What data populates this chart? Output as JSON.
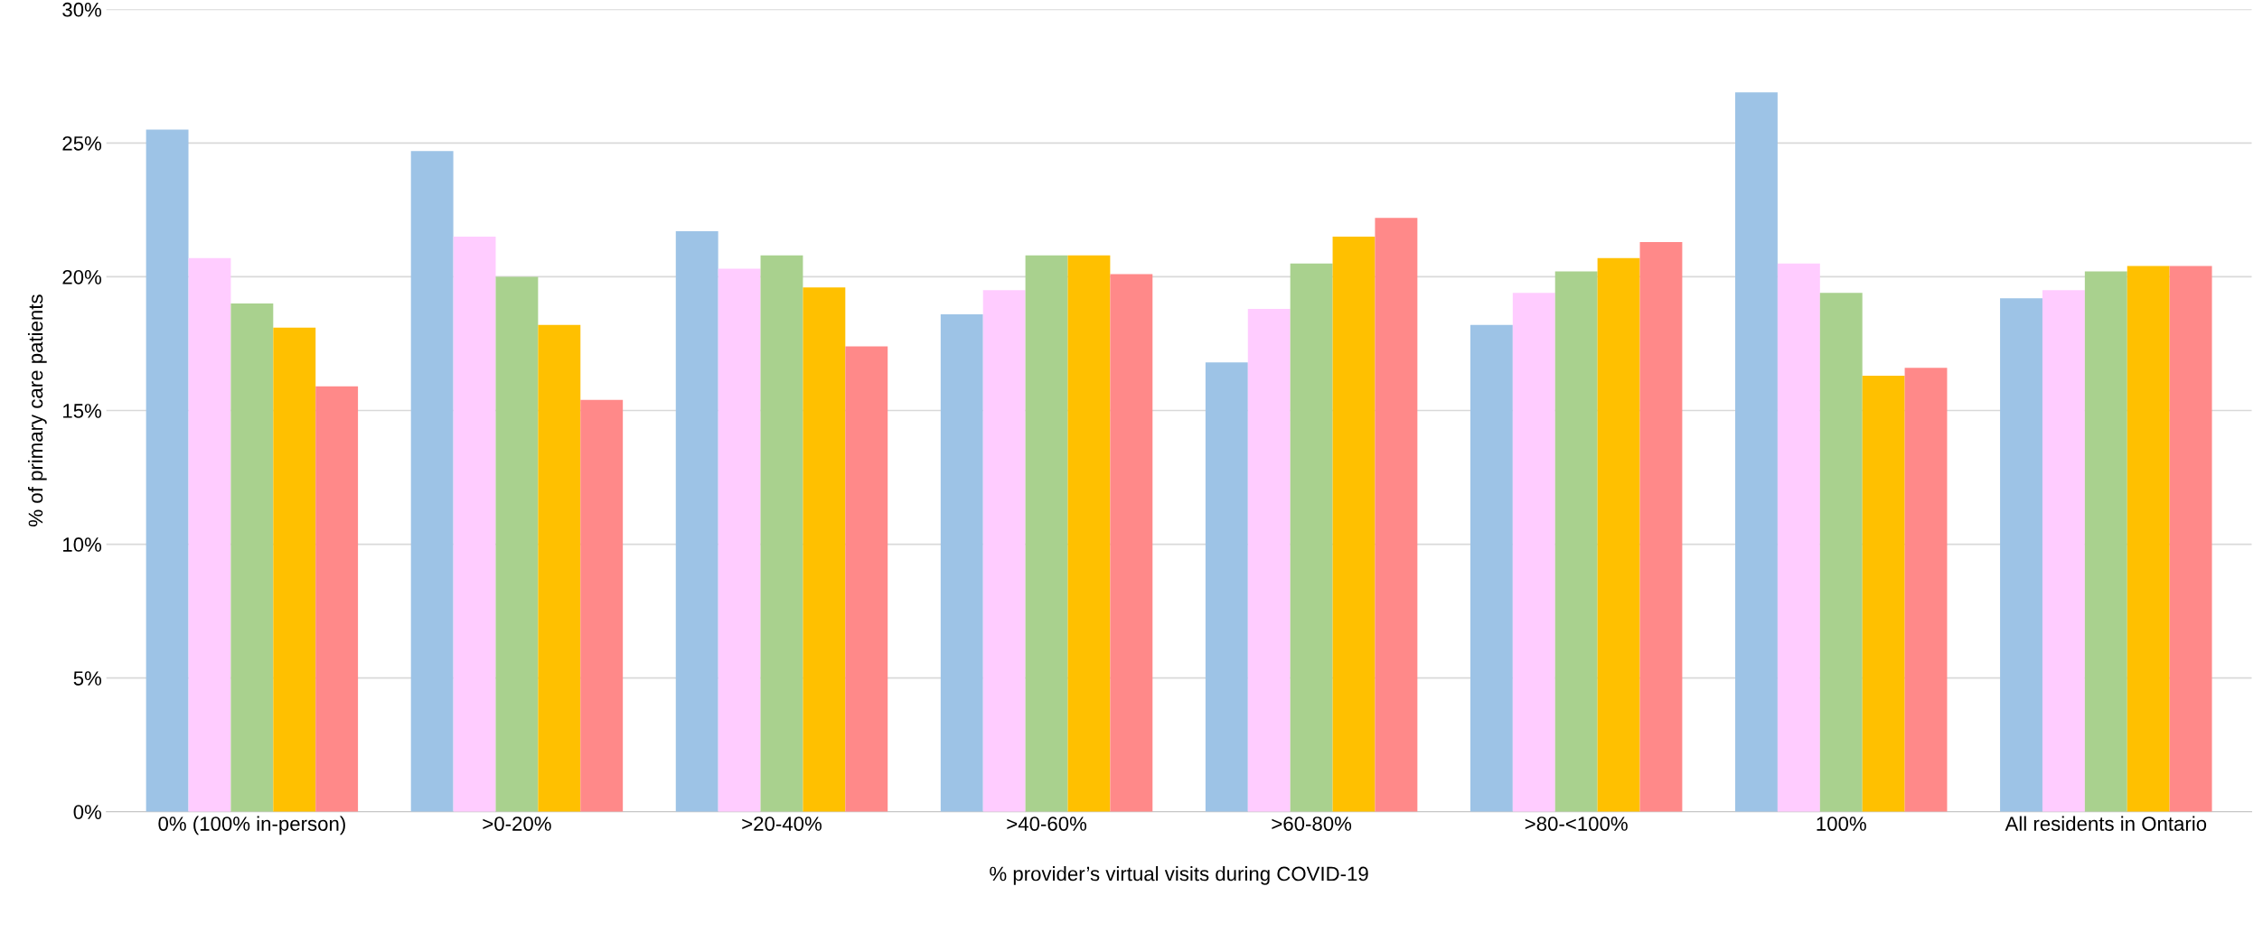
{
  "chart_data": {
    "type": "bar",
    "xlabel": "% provider’s virtual visits during COVID-19",
    "ylabel": "% of primary care patients",
    "categories": [
      "0% (100% in-person)",
      ">0-20%",
      ">20-40%",
      ">40-60%",
      ">60-80%",
      ">80-<100%",
      "100%",
      "All residents in Ontario"
    ],
    "series": [
      {
        "color": "#9dc3e6",
        "values": [
          25.5,
          24.7,
          21.7,
          18.6,
          16.8,
          18.2,
          26.9,
          19.2
        ]
      },
      {
        "color": "#ffccff",
        "values": [
          20.7,
          21.5,
          20.3,
          19.5,
          18.8,
          19.4,
          20.5,
          19.5
        ]
      },
      {
        "color": "#a9d18e",
        "values": [
          19.0,
          20.0,
          20.8,
          20.8,
          20.5,
          20.2,
          19.4,
          20.2
        ]
      },
      {
        "color": "#ffc000",
        "values": [
          18.1,
          18.2,
          19.6,
          20.8,
          21.5,
          20.7,
          16.3,
          20.4
        ]
      },
      {
        "color": "#ff8989",
        "values": [
          15.9,
          15.4,
          17.4,
          20.1,
          22.2,
          21.3,
          16.6,
          20.4
        ]
      }
    ],
    "ylim": [
      0,
      30
    ],
    "yticks": [
      {
        "value": 0,
        "label": "0%"
      },
      {
        "value": 5,
        "label": "5%"
      },
      {
        "value": 10,
        "label": "10%"
      },
      {
        "value": 15,
        "label": "15%"
      },
      {
        "value": 20,
        "label": "20%"
      },
      {
        "value": 25,
        "label": "25%"
      },
      {
        "value": 30,
        "label": "30%"
      }
    ],
    "grid": "y",
    "legend": false
  }
}
